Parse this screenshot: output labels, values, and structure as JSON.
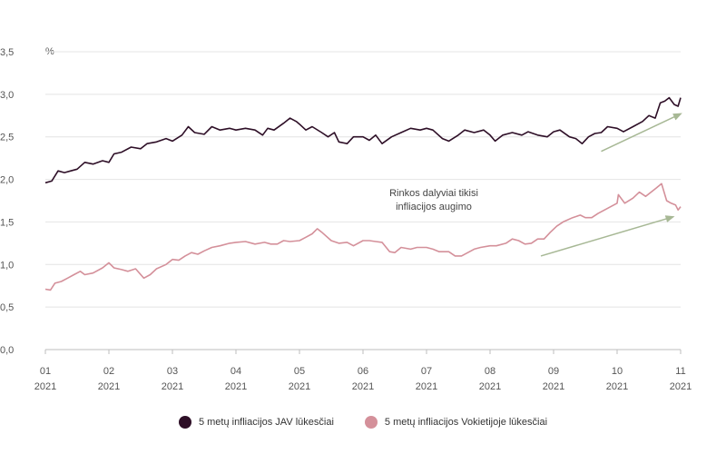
{
  "chart_data": {
    "type": "line",
    "unit_label": "%",
    "ylim": [
      0,
      3.5
    ],
    "yticks": [
      "0,0",
      "0,5",
      "1,0",
      "1,5",
      "2,0",
      "2,5",
      "3,0",
      "3,5"
    ],
    "yticks_values": [
      0,
      0.5,
      1.0,
      1.5,
      2.0,
      2.5,
      3.0,
      3.5
    ],
    "xticks": [
      {
        "month": "01",
        "year": "2021"
      },
      {
        "month": "02",
        "year": "2021"
      },
      {
        "month": "03",
        "year": "2021"
      },
      {
        "month": "04",
        "year": "2021"
      },
      {
        "month": "05",
        "year": "2021"
      },
      {
        "month": "06",
        "year": "2021"
      },
      {
        "month": "07",
        "year": "2021"
      },
      {
        "month": "08",
        "year": "2021"
      },
      {
        "month": "09",
        "year": "2021"
      },
      {
        "month": "10",
        "year": "2021"
      },
      {
        "month": "11",
        "year": "2021"
      }
    ],
    "x_unit": "month index (01 = 0)",
    "grid": true,
    "legend_position": "bottom-center",
    "series": [
      {
        "name": "5 metų infliacijos JAV lūkesčiai",
        "color": "#2e0f27",
        "points": [
          [
            0,
            1.96
          ],
          [
            0.1,
            1.98
          ],
          [
            0.2,
            2.1
          ],
          [
            0.3,
            2.08
          ],
          [
            0.4,
            2.1
          ],
          [
            0.5,
            2.12
          ],
          [
            0.62,
            2.2
          ],
          [
            0.75,
            2.18
          ],
          [
            0.9,
            2.22
          ],
          [
            1.0,
            2.2
          ],
          [
            1.08,
            2.3
          ],
          [
            1.2,
            2.32
          ],
          [
            1.35,
            2.38
          ],
          [
            1.5,
            2.36
          ],
          [
            1.6,
            2.42
          ],
          [
            1.75,
            2.44
          ],
          [
            1.9,
            2.48
          ],
          [
            2.0,
            2.45
          ],
          [
            2.15,
            2.52
          ],
          [
            2.25,
            2.62
          ],
          [
            2.35,
            2.55
          ],
          [
            2.5,
            2.53
          ],
          [
            2.62,
            2.62
          ],
          [
            2.75,
            2.58
          ],
          [
            2.9,
            2.6
          ],
          [
            3.0,
            2.58
          ],
          [
            3.15,
            2.6
          ],
          [
            3.3,
            2.58
          ],
          [
            3.42,
            2.52
          ],
          [
            3.5,
            2.6
          ],
          [
            3.6,
            2.58
          ],
          [
            3.75,
            2.66
          ],
          [
            3.85,
            2.72
          ],
          [
            3.95,
            2.68
          ],
          [
            4.0,
            2.65
          ],
          [
            4.1,
            2.58
          ],
          [
            4.2,
            2.62
          ],
          [
            4.35,
            2.55
          ],
          [
            4.45,
            2.5
          ],
          [
            4.55,
            2.55
          ],
          [
            4.62,
            2.44
          ],
          [
            4.75,
            2.42
          ],
          [
            4.85,
            2.5
          ],
          [
            5.0,
            2.5
          ],
          [
            5.1,
            2.46
          ],
          [
            5.2,
            2.52
          ],
          [
            5.3,
            2.42
          ],
          [
            5.45,
            2.5
          ],
          [
            5.6,
            2.55
          ],
          [
            5.75,
            2.6
          ],
          [
            5.9,
            2.58
          ],
          [
            6.0,
            2.6
          ],
          [
            6.1,
            2.58
          ],
          [
            6.25,
            2.48
          ],
          [
            6.35,
            2.45
          ],
          [
            6.5,
            2.52
          ],
          [
            6.6,
            2.58
          ],
          [
            6.75,
            2.55
          ],
          [
            6.9,
            2.58
          ],
          [
            7.0,
            2.52
          ],
          [
            7.08,
            2.45
          ],
          [
            7.2,
            2.52
          ],
          [
            7.35,
            2.55
          ],
          [
            7.5,
            2.52
          ],
          [
            7.6,
            2.56
          ],
          [
            7.75,
            2.52
          ],
          [
            7.9,
            2.5
          ],
          [
            8.0,
            2.56
          ],
          [
            8.1,
            2.58
          ],
          [
            8.25,
            2.5
          ],
          [
            8.35,
            2.48
          ],
          [
            8.45,
            2.42
          ],
          [
            8.55,
            2.5
          ],
          [
            8.65,
            2.54
          ],
          [
            8.75,
            2.55
          ],
          [
            8.85,
            2.62
          ],
          [
            9.0,
            2.6
          ],
          [
            9.1,
            2.56
          ],
          [
            9.25,
            2.62
          ],
          [
            9.4,
            2.68
          ],
          [
            9.5,
            2.75
          ],
          [
            9.6,
            2.72
          ],
          [
            9.68,
            2.9
          ],
          [
            9.75,
            2.92
          ],
          [
            9.82,
            2.96
          ],
          [
            9.9,
            2.88
          ],
          [
            9.96,
            2.86
          ],
          [
            10.0,
            2.96
          ]
        ]
      },
      {
        "name": "5 metų infliacijos Vokietijoje lūkesčiai",
        "color": "#d4909a",
        "points": [
          [
            0,
            0.71
          ],
          [
            0.08,
            0.7
          ],
          [
            0.15,
            0.78
          ],
          [
            0.25,
            0.8
          ],
          [
            0.35,
            0.84
          ],
          [
            0.45,
            0.88
          ],
          [
            0.55,
            0.92
          ],
          [
            0.62,
            0.88
          ],
          [
            0.75,
            0.9
          ],
          [
            0.9,
            0.96
          ],
          [
            1.0,
            1.02
          ],
          [
            1.08,
            0.96
          ],
          [
            1.2,
            0.94
          ],
          [
            1.3,
            0.92
          ],
          [
            1.42,
            0.95
          ],
          [
            1.55,
            0.84
          ],
          [
            1.65,
            0.88
          ],
          [
            1.75,
            0.95
          ],
          [
            1.9,
            1.0
          ],
          [
            2.0,
            1.06
          ],
          [
            2.1,
            1.05
          ],
          [
            2.2,
            1.1
          ],
          [
            2.3,
            1.14
          ],
          [
            2.4,
            1.12
          ],
          [
            2.5,
            1.16
          ],
          [
            2.62,
            1.2
          ],
          [
            2.75,
            1.22
          ],
          [
            2.9,
            1.25
          ],
          [
            3.0,
            1.26
          ],
          [
            3.15,
            1.27
          ],
          [
            3.3,
            1.24
          ],
          [
            3.45,
            1.26
          ],
          [
            3.55,
            1.24
          ],
          [
            3.65,
            1.24
          ],
          [
            3.75,
            1.28
          ],
          [
            3.85,
            1.27
          ],
          [
            4.0,
            1.28
          ],
          [
            4.1,
            1.32
          ],
          [
            4.2,
            1.36
          ],
          [
            4.28,
            1.42
          ],
          [
            4.35,
            1.38
          ],
          [
            4.5,
            1.28
          ],
          [
            4.62,
            1.25
          ],
          [
            4.75,
            1.26
          ],
          [
            4.85,
            1.22
          ],
          [
            5.0,
            1.28
          ],
          [
            5.1,
            1.28
          ],
          [
            5.2,
            1.27
          ],
          [
            5.3,
            1.26
          ],
          [
            5.42,
            1.15
          ],
          [
            5.5,
            1.14
          ],
          [
            5.6,
            1.2
          ],
          [
            5.75,
            1.18
          ],
          [
            5.85,
            1.2
          ],
          [
            6.0,
            1.2
          ],
          [
            6.1,
            1.18
          ],
          [
            6.2,
            1.15
          ],
          [
            6.35,
            1.15
          ],
          [
            6.45,
            1.1
          ],
          [
            6.55,
            1.1
          ],
          [
            6.65,
            1.14
          ],
          [
            6.75,
            1.18
          ],
          [
            6.85,
            1.2
          ],
          [
            7.0,
            1.22
          ],
          [
            7.1,
            1.22
          ],
          [
            7.25,
            1.25
          ],
          [
            7.35,
            1.3
          ],
          [
            7.45,
            1.28
          ],
          [
            7.55,
            1.24
          ],
          [
            7.65,
            1.25
          ],
          [
            7.75,
            1.3
          ],
          [
            7.85,
            1.3
          ],
          [
            7.95,
            1.38
          ],
          [
            8.05,
            1.45
          ],
          [
            8.15,
            1.5
          ],
          [
            8.3,
            1.55
          ],
          [
            8.42,
            1.58
          ],
          [
            8.5,
            1.55
          ],
          [
            8.6,
            1.55
          ],
          [
            8.7,
            1.6
          ],
          [
            8.8,
            1.64
          ],
          [
            8.9,
            1.68
          ],
          [
            9.0,
            1.72
          ],
          [
            9.02,
            1.82
          ],
          [
            9.12,
            1.72
          ],
          [
            9.25,
            1.78
          ],
          [
            9.35,
            1.85
          ],
          [
            9.45,
            1.8
          ],
          [
            9.55,
            1.86
          ],
          [
            9.62,
            1.9
          ],
          [
            9.7,
            1.95
          ],
          [
            9.78,
            1.75
          ],
          [
            9.85,
            1.72
          ],
          [
            9.92,
            1.7
          ],
          [
            9.96,
            1.64
          ],
          [
            10.0,
            1.68
          ]
        ]
      }
    ],
    "annotation": {
      "lines": [
        "Rinkos dalyviai tikisi",
        "infliacijos augimo"
      ],
      "arrow_color": "#a7b895",
      "arrows": [
        {
          "from": [
            8.75,
            2.33
          ],
          "to": [
            10.0,
            2.77
          ]
        },
        {
          "from": [
            7.8,
            1.1
          ],
          "to": [
            9.88,
            1.56
          ]
        }
      ]
    }
  }
}
